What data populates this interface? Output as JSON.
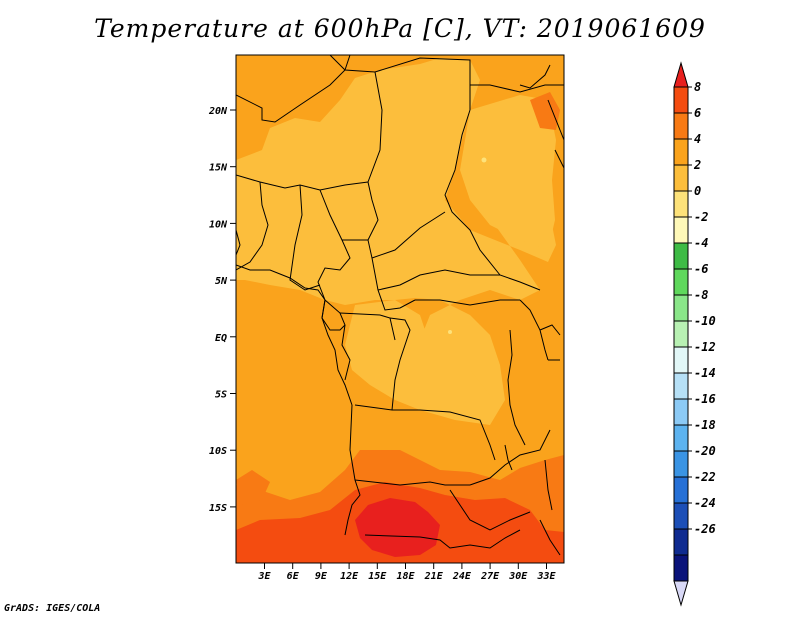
{
  "title": "Temperature at 600hPa [C], VT: 2019061609",
  "footer": "GrADS: IGES/COLA",
  "map": {
    "lat_ticks": [
      "20N",
      "15N",
      "10N",
      "5N",
      "EQ",
      "5S",
      "10S",
      "15S"
    ],
    "lon_ticks": [
      "3E",
      "6E",
      "9E",
      "12E",
      "15E",
      "18E",
      "21E",
      "24E",
      "27E",
      "30E",
      "33E"
    ]
  },
  "colorbar": {
    "labels": [
      "8",
      "6",
      "4",
      "2",
      "0",
      "-2",
      "-4",
      "-6",
      "-8",
      "-10",
      "-12",
      "-14",
      "-16",
      "-18",
      "-20",
      "-22",
      "-24",
      "-26"
    ],
    "colors": [
      "#e8201e",
      "#f44c10",
      "#f87a14",
      "#faa31c",
      "#fcbe3c",
      "#fde27a",
      "#fef8b8",
      "#3ebb45",
      "#5fd85c",
      "#8ae689",
      "#b8f1b3",
      "#e2f7f7",
      "#b6e0f6",
      "#8ccaf5",
      "#5db3ef",
      "#3a94e4",
      "#2670d6",
      "#1c4fb7",
      "#0f2b90",
      "#0a137a",
      "#d8d8f6"
    ]
  }
}
